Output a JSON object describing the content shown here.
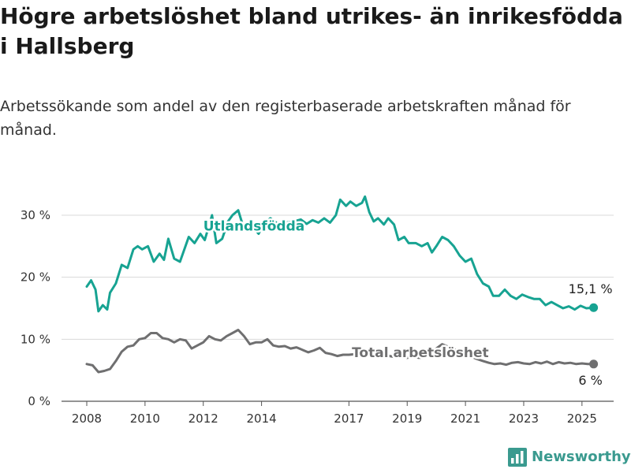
{
  "title": "Högre arbetslöshet bland utrikes- än inrikesfödda i Hallsberg",
  "subtitle": "Arbetssökande som andel av den registerbaserade arbetskraften månad för månad.",
  "brand": {
    "name": "Newsworthy",
    "icon": "bar-chart-logo-icon",
    "color": "#3a9a8f"
  },
  "chart_data": {
    "type": "line",
    "title": "Högre arbetslöshet bland utrikes- än inrikesfödda i Hallsberg",
    "subtitle": "Arbetssökande som andel av den registerbaserade arbetskraften månad för månad.",
    "xlabel": "",
    "ylabel": "",
    "xlim": [
      2008,
      2025.6
    ],
    "ylim": [
      0,
      30
    ],
    "x_ticks": [
      2008,
      2010,
      2012,
      2014,
      2017,
      2019,
      2021,
      2023,
      2025
    ],
    "x_tick_labels": [
      "2008",
      "2010",
      "2012",
      "2014",
      "2017",
      "2019",
      "2021",
      "2023",
      "2025"
    ],
    "y_ticks": [
      0,
      10,
      20,
      30
    ],
    "y_tick_labels": [
      "0 %",
      "10 %",
      "20 %",
      "30 %"
    ],
    "grid": "horizontal",
    "series": [
      {
        "name": "Utlandsfödda",
        "color": "#17a392",
        "end_label": "15,1 %",
        "points": [
          [
            2008.0,
            18.5
          ],
          [
            2008.15,
            19.5
          ],
          [
            2008.3,
            18.0
          ],
          [
            2008.4,
            14.5
          ],
          [
            2008.55,
            15.5
          ],
          [
            2008.7,
            14.8
          ],
          [
            2008.8,
            17.5
          ],
          [
            2009.0,
            19.0
          ],
          [
            2009.2,
            22.0
          ],
          [
            2009.4,
            21.5
          ],
          [
            2009.6,
            24.5
          ],
          [
            2009.75,
            25.0
          ],
          [
            2009.9,
            24.5
          ],
          [
            2010.1,
            25.0
          ],
          [
            2010.3,
            22.5
          ],
          [
            2010.5,
            23.8
          ],
          [
            2010.65,
            22.8
          ],
          [
            2010.8,
            26.2
          ],
          [
            2011.0,
            23.0
          ],
          [
            2011.2,
            22.5
          ],
          [
            2011.5,
            26.5
          ],
          [
            2011.7,
            25.5
          ],
          [
            2011.9,
            27.0
          ],
          [
            2012.05,
            26.0
          ],
          [
            2012.3,
            30.0
          ],
          [
            2012.45,
            25.5
          ],
          [
            2012.65,
            26.2
          ],
          [
            2012.85,
            29.0
          ],
          [
            2013.0,
            30.0
          ],
          [
            2013.2,
            30.8
          ],
          [
            2013.35,
            28.5
          ],
          [
            2013.5,
            27.5
          ],
          [
            2013.7,
            28.2
          ],
          [
            2013.9,
            27.0
          ],
          [
            2014.05,
            28.5
          ],
          [
            2014.3,
            29.5
          ],
          [
            2014.6,
            28.5
          ],
          [
            2014.85,
            28.8
          ],
          [
            2015.1,
            29.0
          ],
          [
            2015.35,
            29.3
          ],
          [
            2015.55,
            28.6
          ],
          [
            2015.75,
            29.2
          ],
          [
            2015.95,
            28.8
          ],
          [
            2016.15,
            29.5
          ],
          [
            2016.35,
            28.8
          ],
          [
            2016.55,
            30.0
          ],
          [
            2016.7,
            32.5
          ],
          [
            2016.9,
            31.5
          ],
          [
            2017.05,
            32.2
          ],
          [
            2017.25,
            31.5
          ],
          [
            2017.45,
            32.0
          ],
          [
            2017.55,
            33.0
          ],
          [
            2017.7,
            30.5
          ],
          [
            2017.85,
            29.0
          ],
          [
            2018.0,
            29.5
          ],
          [
            2018.2,
            28.5
          ],
          [
            2018.35,
            29.5
          ],
          [
            2018.55,
            28.5
          ],
          [
            2018.7,
            26.0
          ],
          [
            2018.9,
            26.5
          ],
          [
            2019.05,
            25.5
          ],
          [
            2019.3,
            25.5
          ],
          [
            2019.5,
            25.0
          ],
          [
            2019.7,
            25.5
          ],
          [
            2019.85,
            24.0
          ],
          [
            2020.0,
            25.0
          ],
          [
            2020.2,
            26.5
          ],
          [
            2020.4,
            26.0
          ],
          [
            2020.6,
            25.0
          ],
          [
            2020.8,
            23.5
          ],
          [
            2021.0,
            22.5
          ],
          [
            2021.2,
            23.0
          ],
          [
            2021.4,
            20.5
          ],
          [
            2021.6,
            19.0
          ],
          [
            2021.8,
            18.5
          ],
          [
            2021.95,
            17.0
          ],
          [
            2022.15,
            17.0
          ],
          [
            2022.35,
            18.0
          ],
          [
            2022.55,
            17.0
          ],
          [
            2022.75,
            16.5
          ],
          [
            2022.95,
            17.2
          ],
          [
            2023.15,
            16.8
          ],
          [
            2023.35,
            16.5
          ],
          [
            2023.55,
            16.5
          ],
          [
            2023.75,
            15.5
          ],
          [
            2023.95,
            16.0
          ],
          [
            2024.15,
            15.5
          ],
          [
            2024.35,
            15.0
          ],
          [
            2024.55,
            15.3
          ],
          [
            2024.75,
            14.8
          ],
          [
            2024.95,
            15.4
          ],
          [
            2025.15,
            15.0
          ],
          [
            2025.4,
            15.1
          ]
        ]
      },
      {
        "name": "Total arbetslöshet",
        "color": "#6f6f70",
        "end_label": "6 %",
        "points": [
          [
            2008.0,
            6.0
          ],
          [
            2008.2,
            5.8
          ],
          [
            2008.4,
            4.7
          ],
          [
            2008.6,
            4.9
          ],
          [
            2008.8,
            5.2
          ],
          [
            2009.0,
            6.5
          ],
          [
            2009.2,
            8.0
          ],
          [
            2009.4,
            8.8
          ],
          [
            2009.6,
            9.0
          ],
          [
            2009.8,
            10.0
          ],
          [
            2010.0,
            10.2
          ],
          [
            2010.2,
            11.0
          ],
          [
            2010.4,
            11.0
          ],
          [
            2010.6,
            10.2
          ],
          [
            2010.8,
            10.0
          ],
          [
            2011.0,
            9.5
          ],
          [
            2011.2,
            10.0
          ],
          [
            2011.4,
            9.8
          ],
          [
            2011.6,
            8.5
          ],
          [
            2011.8,
            9.0
          ],
          [
            2012.0,
            9.5
          ],
          [
            2012.2,
            10.5
          ],
          [
            2012.4,
            10.0
          ],
          [
            2012.6,
            9.8
          ],
          [
            2012.8,
            10.5
          ],
          [
            2013.0,
            11.0
          ],
          [
            2013.2,
            11.5
          ],
          [
            2013.4,
            10.5
          ],
          [
            2013.6,
            9.2
          ],
          [
            2013.8,
            9.5
          ],
          [
            2014.0,
            9.5
          ],
          [
            2014.2,
            10.0
          ],
          [
            2014.4,
            9.0
          ],
          [
            2014.6,
            8.8
          ],
          [
            2014.8,
            8.9
          ],
          [
            2015.0,
            8.5
          ],
          [
            2015.2,
            8.7
          ],
          [
            2015.4,
            8.3
          ],
          [
            2015.6,
            7.9
          ],
          [
            2015.8,
            8.2
          ],
          [
            2016.0,
            8.6
          ],
          [
            2016.2,
            7.8
          ],
          [
            2016.4,
            7.6
          ],
          [
            2016.6,
            7.3
          ],
          [
            2016.8,
            7.5
          ],
          [
            2017.0,
            7.5
          ],
          [
            2017.2,
            7.6
          ],
          [
            2017.4,
            7.4
          ],
          [
            2017.6,
            7.5
          ],
          [
            2017.8,
            7.4
          ],
          [
            2018.0,
            7.3
          ],
          [
            2018.2,
            7.5
          ],
          [
            2018.4,
            7.3
          ],
          [
            2018.6,
            7.1
          ],
          [
            2018.8,
            7.2
          ],
          [
            2019.0,
            7.0
          ],
          [
            2019.2,
            7.2
          ],
          [
            2019.4,
            7.0
          ],
          [
            2019.6,
            7.1
          ],
          [
            2019.8,
            7.3
          ],
          [
            2020.0,
            8.5
          ],
          [
            2020.2,
            9.2
          ],
          [
            2020.4,
            8.8
          ],
          [
            2020.6,
            8.4
          ],
          [
            2020.8,
            8.0
          ],
          [
            2021.0,
            7.6
          ],
          [
            2021.2,
            7.2
          ],
          [
            2021.4,
            6.8
          ],
          [
            2021.6,
            6.5
          ],
          [
            2021.8,
            6.2
          ],
          [
            2022.0,
            6.0
          ],
          [
            2022.2,
            6.1
          ],
          [
            2022.4,
            5.9
          ],
          [
            2022.6,
            6.2
          ],
          [
            2022.8,
            6.3
          ],
          [
            2023.0,
            6.1
          ],
          [
            2023.2,
            6.0
          ],
          [
            2023.4,
            6.3
          ],
          [
            2023.6,
            6.1
          ],
          [
            2023.8,
            6.4
          ],
          [
            2024.0,
            6.0
          ],
          [
            2024.2,
            6.3
          ],
          [
            2024.4,
            6.1
          ],
          [
            2024.6,
            6.2
          ],
          [
            2024.8,
            6.0
          ],
          [
            2025.0,
            6.1
          ],
          [
            2025.2,
            6.0
          ],
          [
            2025.4,
            6.0
          ]
        ]
      }
    ]
  }
}
